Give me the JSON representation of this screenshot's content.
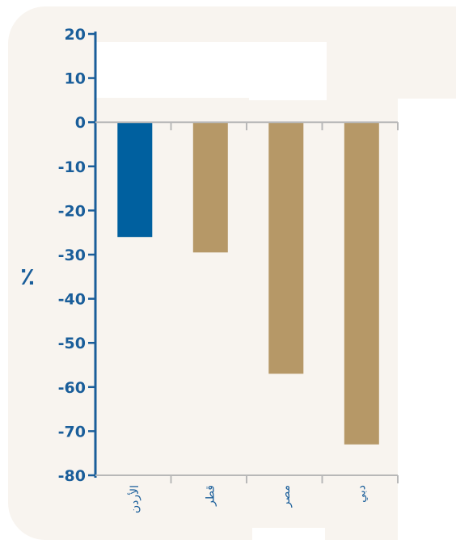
{
  "chart_data": {
    "type": "bar",
    "title": "",
    "xlabel": "",
    "ylabel": "٪",
    "ylim": [
      -80,
      20
    ],
    "yticks": [
      20,
      10,
      0,
      -10,
      -20,
      -30,
      -40,
      -50,
      -60,
      -70,
      -80
    ],
    "categories": [
      "الأردن",
      "قطر",
      "مصر",
      "دبي"
    ],
    "values": [
      -26,
      -29.5,
      -57,
      -73
    ],
    "colors": [
      "#00609f",
      "#b69867",
      "#b69867",
      "#b69867"
    ],
    "grid": false,
    "legend": "none"
  }
}
